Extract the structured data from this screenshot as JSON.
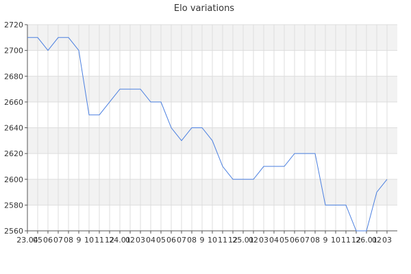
{
  "chart_data": {
    "type": "line",
    "title": "Elo variations",
    "xlabel": "",
    "ylabel": "",
    "ylim": [
      2560,
      2720
    ],
    "y_ticks": [
      2560,
      2580,
      2600,
      2620,
      2640,
      2660,
      2680,
      2700,
      2720
    ],
    "x_tick_labels": [
      "23.04",
      "05",
      "06",
      "07",
      "08",
      "9",
      "10",
      "11",
      "12",
      "24.01",
      "02",
      "03",
      "04",
      "05",
      "06",
      "07",
      "08",
      "9",
      "10",
      "11",
      "12",
      "25.01",
      "02",
      "03",
      "04",
      "05",
      "06",
      "07",
      "08",
      "9",
      "10",
      "11",
      "12",
      "26.01",
      "02",
      "03"
    ],
    "grid": true,
    "colors": {
      "line": "#4a7fe0",
      "band": "#f2f2f2",
      "grid": "#dddddd",
      "axis": "#555555"
    },
    "series": [
      {
        "values": [
          2710,
          2710,
          2700,
          2710,
          2710,
          2700,
          2650,
          2650,
          2660,
          2670,
          2670,
          2670,
          2660,
          2660,
          2640,
          2630,
          2640,
          2640,
          2630,
          2610,
          2600,
          2600,
          2600,
          2610,
          2610,
          2610,
          2620,
          2620,
          2620,
          2580,
          2580,
          2580,
          2560,
          2560,
          2590,
          2600
        ]
      }
    ]
  }
}
